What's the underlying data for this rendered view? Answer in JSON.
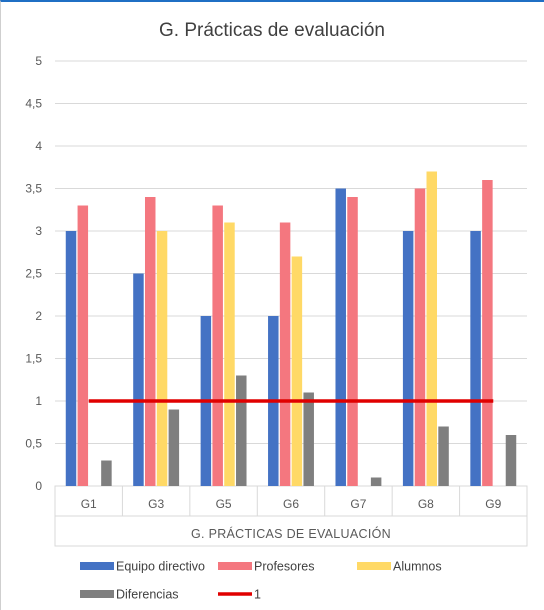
{
  "chart_data": {
    "type": "bar",
    "title": "G. Prácticas de evaluación",
    "xlabel": "G. PRÁCTICAS DE EVALUACIÓN",
    "ylabel": "",
    "ylim": [
      0,
      5
    ],
    "yticks": [
      "0",
      "0,5",
      "1",
      "1,5",
      "2",
      "2,5",
      "3",
      "3,5",
      "4",
      "4,5",
      "5"
    ],
    "categories": [
      "G1",
      "G3",
      "G5",
      "G6",
      "G7",
      "G8",
      "G9"
    ],
    "grid": true,
    "legend_position": "bottom",
    "series": [
      {
        "name": "Equipo directivo",
        "type": "bar",
        "color": "#4472c4",
        "values": [
          3.0,
          2.5,
          2.0,
          2.0,
          3.5,
          3.0,
          3.0
        ]
      },
      {
        "name": "Profesores",
        "type": "bar",
        "color": "#f4777f",
        "values": [
          3.3,
          3.4,
          3.3,
          3.1,
          3.4,
          3.5,
          3.6
        ]
      },
      {
        "name": "Alumnos",
        "type": "bar",
        "color": "#ffd966",
        "values": [
          null,
          3.0,
          3.1,
          2.7,
          null,
          3.7,
          null
        ]
      },
      {
        "name": "Diferencias",
        "type": "bar",
        "color": "#7f7f7f",
        "values": [
          0.3,
          0.9,
          1.3,
          1.1,
          0.1,
          0.7,
          0.6
        ]
      },
      {
        "name": "1",
        "type": "line",
        "color": "#e00000",
        "values": [
          1,
          1,
          1,
          1,
          1,
          1,
          1
        ]
      }
    ]
  }
}
